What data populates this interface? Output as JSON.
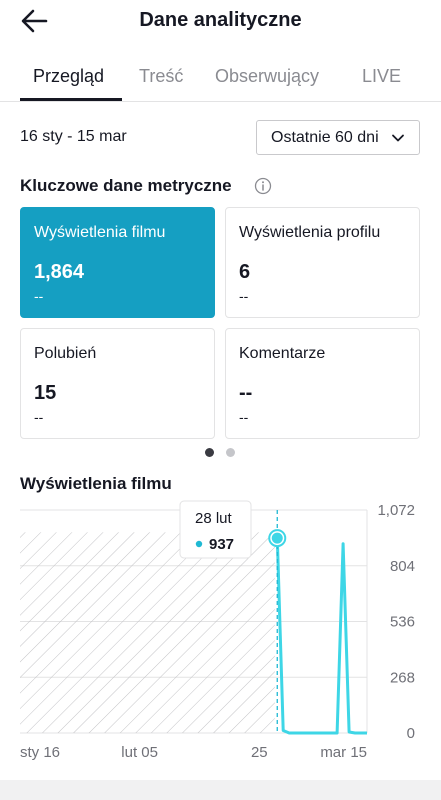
{
  "header": {
    "title": "Dane analityczne",
    "back_icon": "arrow-left-icon"
  },
  "tabs": [
    {
      "label": "Przegląd",
      "active": true
    },
    {
      "label": "Treść",
      "active": false
    },
    {
      "label": "Obserwujący",
      "active": false
    },
    {
      "label": "LIVE",
      "active": false
    }
  ],
  "date_range": "16 sty - 15 mar",
  "period_select": {
    "value": "Ostatnie 60 dni"
  },
  "key_metrics": {
    "title": "Kluczowe dane metryczne",
    "cards": [
      {
        "label": "Wyświetlenia filmu",
        "value": "1,864",
        "change": "--",
        "selected": true
      },
      {
        "label": "Wyświetlenia profilu",
        "value": "6",
        "change": "--",
        "selected": false
      },
      {
        "label": "Polubień",
        "value": "15",
        "change": "--",
        "selected": false
      },
      {
        "label": "Komentarze",
        "value": "--",
        "change": "--",
        "selected": false
      }
    ],
    "page_dots": {
      "count": 2,
      "active_index": 0
    }
  },
  "chart_section": {
    "title": "Wyświetlenia filmu"
  },
  "chart_data": {
    "type": "line",
    "x": [
      "sty 16",
      "sty 17",
      "sty 18",
      "sty 19",
      "sty 20",
      "sty 21",
      "sty 22",
      "sty 23",
      "sty 24",
      "sty 25",
      "sty 26",
      "sty 27",
      "sty 28",
      "sty 29",
      "sty 30",
      "sty 31",
      "lut 01",
      "lut 02",
      "lut 03",
      "lut 04",
      "lut 05",
      "lut 06",
      "lut 07",
      "lut 08",
      "lut 09",
      "lut 10",
      "lut 11",
      "lut 12",
      "lut 13",
      "lut 14",
      "lut 15",
      "lut 16",
      "lut 17",
      "lut 18",
      "lut 19",
      "lut 20",
      "lut 21",
      "lut 22",
      "lut 23",
      "lut 24",
      "lut 25",
      "lut 26",
      "lut 27",
      "lut 28",
      "mar 01",
      "mar 02",
      "mar 03",
      "mar 04",
      "mar 05",
      "mar 06",
      "mar 07",
      "mar 08",
      "mar 09",
      "mar 10",
      "mar 11",
      "mar 12",
      "mar 13",
      "mar 14",
      "mar 15"
    ],
    "series": [
      {
        "values": [
          null,
          null,
          null,
          null,
          null,
          null,
          null,
          null,
          null,
          null,
          null,
          null,
          null,
          null,
          null,
          null,
          null,
          null,
          null,
          null,
          null,
          null,
          null,
          null,
          null,
          null,
          null,
          null,
          null,
          null,
          null,
          null,
          null,
          null,
          null,
          null,
          null,
          null,
          null,
          null,
          null,
          null,
          null,
          937,
          12,
          0,
          0,
          0,
          0,
          0,
          0,
          0,
          0,
          0,
          910,
          5,
          0,
          0,
          0
        ],
        "color": "#3ed6e6"
      }
    ],
    "xtick_labels": [
      "sty 16",
      "lut 05",
      "25",
      "mar 15"
    ],
    "ytick_labels": [
      "1,072",
      "804",
      "536",
      "268",
      "0"
    ],
    "ylim": [
      0,
      1072
    ],
    "y_axis_side": "right",
    "grid": true,
    "no_data_region": {
      "from": "sty 16",
      "to": "lut 27",
      "pattern": "diagonal-hatch"
    },
    "tooltip": {
      "date": "28 lut",
      "value": "937",
      "color": "#1fb9d3"
    }
  },
  "colors": {
    "accent": "#159fc2",
    "line": "#3ed6e6",
    "text": "#161823",
    "muted": "#8a8b91"
  }
}
